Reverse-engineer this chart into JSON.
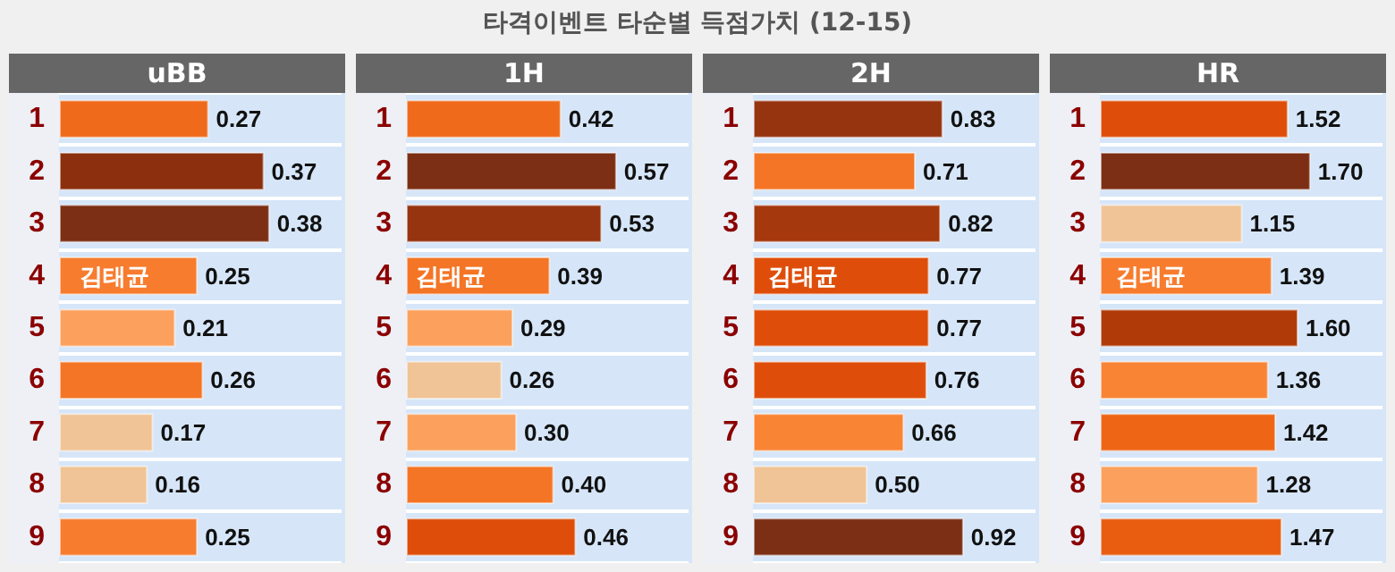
{
  "chart_data": [
    {
      "type": "other",
      "title": "타격이벤트 타순별 득점가치 (12-15)"
    },
    {
      "type": "bar",
      "orientation": "horizontal",
      "title": "uBB",
      "categories": [
        "1",
        "2",
        "3",
        "4",
        "5",
        "6",
        "7",
        "8",
        "9"
      ],
      "values": [
        0.27,
        0.37,
        0.38,
        0.25,
        0.21,
        0.26,
        0.17,
        0.16,
        0.25
      ],
      "colors": [
        "#ef6a1a",
        "#8b2f0e",
        "#7c2f14",
        "#f77c2e",
        "#fba15d",
        "#f47525",
        "#f0c496",
        "#f0c496",
        "#f77c2e"
      ],
      "value_labels": [
        "0.27",
        "0.37",
        "0.38",
        "0.25",
        "0.21",
        "0.26",
        "0.17",
        "0.16",
        "0.25"
      ],
      "data_labels": true,
      "grid": "y",
      "annotations": [
        {
          "text": "김태균",
          "x": 0.1,
          "y": "4"
        }
      ]
    },
    {
      "type": "bar",
      "orientation": "horizontal",
      "title": "1H",
      "categories": [
        "1",
        "2",
        "3",
        "4",
        "5",
        "6",
        "7",
        "8",
        "9"
      ],
      "values": [
        0.42,
        0.57,
        0.53,
        0.39,
        0.29,
        0.26,
        0.3,
        0.4,
        0.46
      ],
      "colors": [
        "#ef6a1a",
        "#7c2f14",
        "#963410",
        "#f47525",
        "#fba15d",
        "#f0c496",
        "#fba15d",
        "#f47525",
        "#de4e0a"
      ],
      "value_labels": [
        "0.42",
        "0.57",
        "0.53",
        "0.39",
        "0.29",
        "0.26",
        "0.30",
        "0.40",
        "0.46"
      ],
      "data_labels": true,
      "grid": "y",
      "annotations": [
        {
          "text": "김태균",
          "x": 0.12,
          "y": "4"
        }
      ]
    },
    {
      "type": "bar",
      "orientation": "horizontal",
      "title": "2H",
      "categories": [
        "1",
        "2",
        "3",
        "4",
        "5",
        "6",
        "7",
        "8",
        "9"
      ],
      "values": [
        0.83,
        0.71,
        0.82,
        0.77,
        0.77,
        0.76,
        0.66,
        0.5,
        0.92
      ],
      "colors": [
        "#963410",
        "#f47525",
        "#a5380c",
        "#de4e0a",
        "#de4e0a",
        "#de4e0a",
        "#f88434",
        "#f0c496",
        "#7c2f14"
      ],
      "value_labels": [
        "0.83",
        "0.71",
        "0.82",
        "0.77",
        "0.77",
        "0.76",
        "0.66",
        "0.50",
        "0.92"
      ],
      "data_labels": true,
      "grid": "y",
      "annotations": [
        {
          "text": "김태균",
          "x": 0.22,
          "y": "4"
        }
      ]
    },
    {
      "type": "bar",
      "orientation": "horizontal",
      "title": "HR",
      "categories": [
        "1",
        "2",
        "3",
        "4",
        "5",
        "6",
        "7",
        "8",
        "9"
      ],
      "values": [
        1.52,
        1.7,
        1.15,
        1.39,
        1.6,
        1.36,
        1.42,
        1.28,
        1.47
      ],
      "colors": [
        "#de4e0a",
        "#7c2f14",
        "#f0c496",
        "#f77c2e",
        "#b03a08",
        "#f88434",
        "#ee6515",
        "#fba15d",
        "#e85d0f"
      ],
      "value_labels": [
        "1.52",
        "1.70",
        "1.15",
        "1.39",
        "1.60",
        "1.36",
        "1.42",
        "1.28",
        "1.47"
      ],
      "data_labels": true,
      "grid": "y",
      "annotations": [
        {
          "text": "김태균",
          "x": 0.41,
          "y": "4"
        }
      ]
    }
  ]
}
